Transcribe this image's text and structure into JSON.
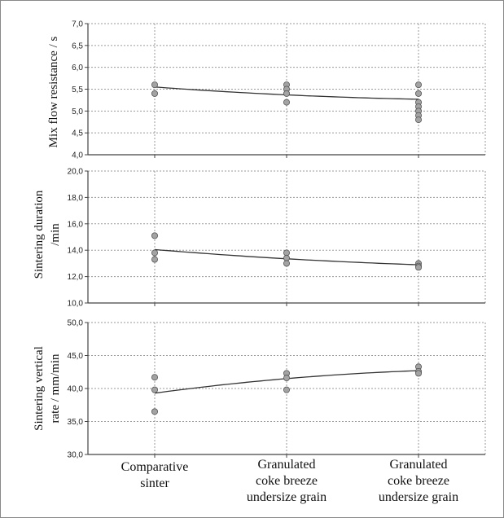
{
  "chart_data": [
    {
      "type": "scatter",
      "ylabel": "Mix flow resistance / s",
      "ylim": [
        4.0,
        7.0
      ],
      "yticks": [
        "4,0",
        "4,5",
        "5,0",
        "5,5",
        "6,0",
        "6,5",
        "7,0"
      ],
      "grid": true,
      "categories": [
        "Comparative sinter",
        "Granulated coke breeze undersize grain",
        "Granulated coke breeze undersize grain"
      ],
      "points": [
        [
          5.6,
          5.4
        ],
        [
          5.6,
          5.5,
          5.4,
          5.2
        ],
        [
          5.6,
          5.4,
          5.2,
          5.1,
          5.0,
          4.9,
          4.8
        ]
      ],
      "trend": [
        5.55,
        5.37,
        5.27
      ]
    },
    {
      "type": "scatter",
      "ylabel": "Sintering duration /min",
      "ylim": [
        10.0,
        20.0
      ],
      "yticks": [
        "10,0",
        "12,0",
        "14,0",
        "16,0",
        "18,0",
        "20,0"
      ],
      "grid": true,
      "categories": [
        "Comparative sinter",
        "Granulated coke breeze undersize grain",
        "Granulated coke breeze undersize grain"
      ],
      "points": [
        [
          15.1,
          13.8,
          13.3
        ],
        [
          13.8,
          13.4,
          13.0
        ],
        [
          13.0,
          12.8,
          12.7
        ]
      ],
      "trend": [
        14.05,
        13.35,
        12.9
      ]
    },
    {
      "type": "scatter",
      "ylabel": "Sintering vertical rate / mm/min",
      "ylim": [
        30.0,
        50.0
      ],
      "yticks": [
        "30,0",
        "35,0",
        "40,0",
        "45,0",
        "50,0"
      ],
      "grid": true,
      "categories": [
        "Comparative sinter",
        "Granulated coke breeze undersize grain",
        "Granulated coke breeze undersize grain"
      ],
      "points": [
        [
          41.7,
          39.8,
          36.5
        ],
        [
          42.3,
          41.6,
          39.8
        ],
        [
          43.3,
          42.6,
          42.3
        ]
      ],
      "trend": [
        39.3,
        41.5,
        42.7
      ]
    }
  ],
  "panel_labels": [
    {
      "line1": "Mix flow resistance / s",
      "line2": ""
    },
    {
      "line1": "Sintering duration",
      "line2": "/min"
    },
    {
      "line1": "Sintering vertical",
      "line2": "rate / mm/min"
    }
  ],
  "category_labels": [
    {
      "line1": "Comparative",
      "line2": "sinter",
      "line3": ""
    },
    {
      "line1": "Granulated",
      "line2": "coke breeze",
      "line3": "undersize grain"
    },
    {
      "line1": "Granulated",
      "line2": "coke breeze",
      "line3": "undersize grain"
    }
  ],
  "colors": {
    "point_fill": "#a3a3a3",
    "point_stroke": "#555555",
    "line": "#333333",
    "grid": "#9a9a9a",
    "axis": "#444444",
    "frame": "#888888"
  }
}
